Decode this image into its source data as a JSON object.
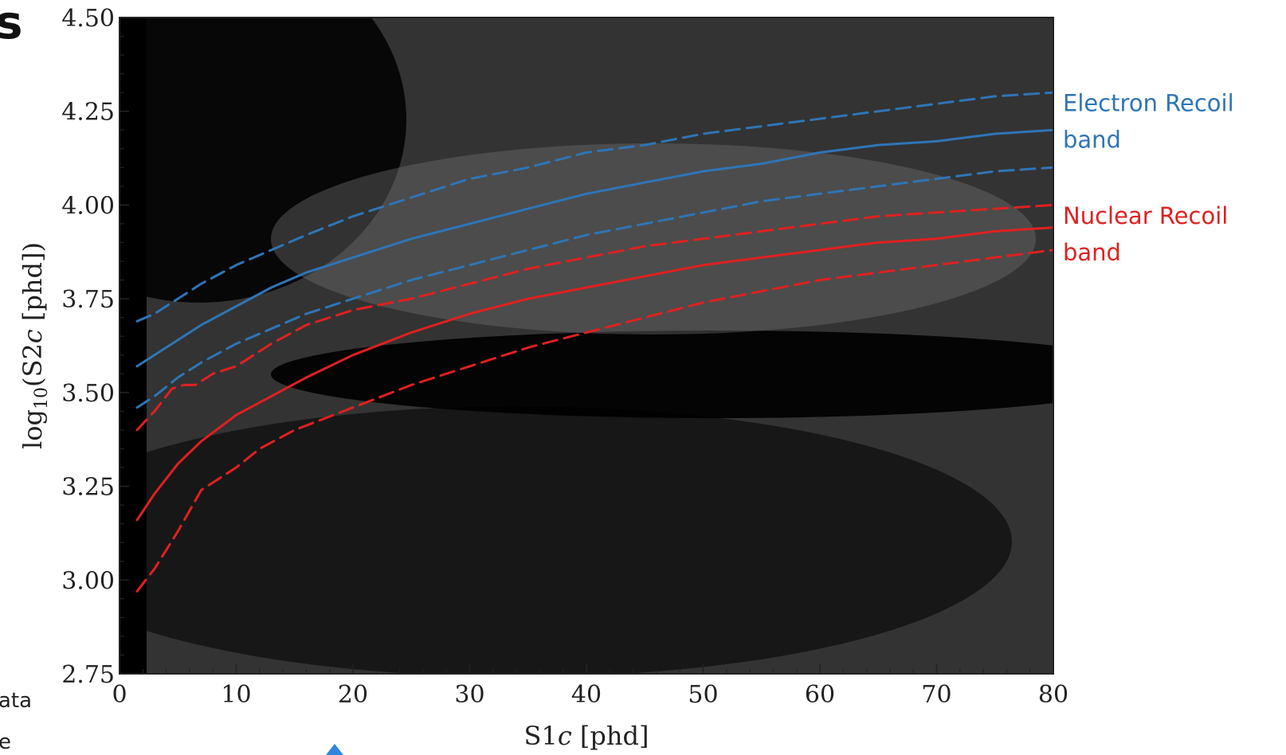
{
  "slide_fragments": {
    "title_tail": "s",
    "left_note_line1": "ata",
    "left_note_line2": "e"
  },
  "chart_data": {
    "type": "scatter",
    "xlabel_main": "S1",
    "xlabel_var": "c",
    "xlabel_unit": " [phd]",
    "ylabel_prefix": "log",
    "ylabel_sub": "10",
    "ylabel_mid": "(S2",
    "ylabel_var": "c",
    "ylabel_unit": " [phd])",
    "xlim": [
      0,
      80
    ],
    "ylim": [
      2.75,
      4.5
    ],
    "xticks": [
      0,
      10,
      20,
      30,
      40,
      50,
      60,
      70,
      80
    ],
    "yticks": [
      "2.75",
      "3.00",
      "3.25",
      "3.50",
      "3.75",
      "4.00",
      "4.25",
      "4.50"
    ],
    "grid": false,
    "legend": "none",
    "colors": {
      "background_points": "#000000",
      "er_band": "#2e75b6",
      "nr_band": "#e02020",
      "marker": "#2e86de"
    },
    "annotations": [
      {
        "band": "er",
        "line1": "Electron Recoil",
        "line2": "band",
        "color": "#2e75b6",
        "at_y": 4.25
      },
      {
        "band": "nr",
        "line1": "Nuclear Recoil",
        "line2": "band",
        "color": "#e02020",
        "at_y": 3.95
      }
    ],
    "series": [
      {
        "band": "er",
        "role": "median",
        "style": "solid",
        "color": "#2e75b6",
        "x": [
          1.5,
          3,
          5,
          7,
          10,
          13,
          16,
          20,
          25,
          30,
          35,
          40,
          45,
          50,
          55,
          60,
          65,
          70,
          75,
          80
        ],
        "y": [
          3.57,
          3.6,
          3.64,
          3.68,
          3.73,
          3.78,
          3.82,
          3.86,
          3.91,
          3.95,
          3.99,
          4.03,
          4.06,
          4.09,
          4.11,
          4.14,
          4.16,
          4.17,
          4.19,
          4.2
        ]
      },
      {
        "band": "er",
        "role": "upper",
        "style": "dashed",
        "color": "#2e75b6",
        "x": [
          1.5,
          3,
          5,
          7,
          10,
          13,
          16,
          20,
          25,
          30,
          35,
          40,
          45,
          50,
          55,
          60,
          65,
          70,
          75,
          80
        ],
        "y": [
          3.69,
          3.71,
          3.75,
          3.79,
          3.84,
          3.88,
          3.92,
          3.97,
          4.02,
          4.07,
          4.1,
          4.14,
          4.16,
          4.19,
          4.21,
          4.23,
          4.25,
          4.27,
          4.29,
          4.3
        ]
      },
      {
        "band": "er",
        "role": "lower",
        "style": "dashed",
        "color": "#2e75b6",
        "x": [
          1.5,
          3,
          5,
          7,
          10,
          13,
          16,
          20,
          25,
          30,
          35,
          40,
          45,
          50,
          55,
          60,
          65,
          70,
          75,
          80
        ],
        "y": [
          3.46,
          3.49,
          3.54,
          3.58,
          3.63,
          3.67,
          3.71,
          3.75,
          3.8,
          3.84,
          3.88,
          3.92,
          3.95,
          3.98,
          4.01,
          4.03,
          4.05,
          4.07,
          4.09,
          4.1
        ]
      },
      {
        "band": "nr",
        "role": "median",
        "style": "solid",
        "color": "#e02020",
        "x": [
          1.5,
          3,
          5,
          7,
          10,
          13,
          16,
          20,
          25,
          30,
          35,
          40,
          45,
          50,
          55,
          60,
          65,
          70,
          75,
          80
        ],
        "y": [
          3.16,
          3.23,
          3.31,
          3.37,
          3.44,
          3.49,
          3.54,
          3.6,
          3.66,
          3.71,
          3.75,
          3.78,
          3.81,
          3.84,
          3.86,
          3.88,
          3.9,
          3.91,
          3.93,
          3.94
        ]
      },
      {
        "band": "nr",
        "role": "upper",
        "style": "dashed",
        "color": "#e02020",
        "x": [
          1.5,
          3,
          4.5,
          5.5,
          6.5,
          8,
          10,
          13,
          16,
          20,
          25,
          30,
          35,
          40,
          45,
          50,
          55,
          60,
          65,
          70,
          75,
          80
        ],
        "y": [
          3.4,
          3.45,
          3.51,
          3.52,
          3.52,
          3.55,
          3.57,
          3.63,
          3.68,
          3.72,
          3.75,
          3.79,
          3.83,
          3.86,
          3.89,
          3.91,
          3.93,
          3.95,
          3.97,
          3.98,
          3.99,
          4.0
        ]
      },
      {
        "band": "nr",
        "role": "lower",
        "style": "dashed",
        "color": "#e02020",
        "x": [
          1.5,
          3,
          5,
          7,
          10,
          12,
          15,
          20,
          25,
          30,
          35,
          40,
          45,
          50,
          55,
          60,
          65,
          70,
          75,
          80
        ],
        "y": [
          2.97,
          3.03,
          3.13,
          3.24,
          3.3,
          3.35,
          3.4,
          3.46,
          3.52,
          3.57,
          3.62,
          3.66,
          3.7,
          3.74,
          3.77,
          3.8,
          3.82,
          3.84,
          3.86,
          3.88
        ]
      }
    ]
  }
}
